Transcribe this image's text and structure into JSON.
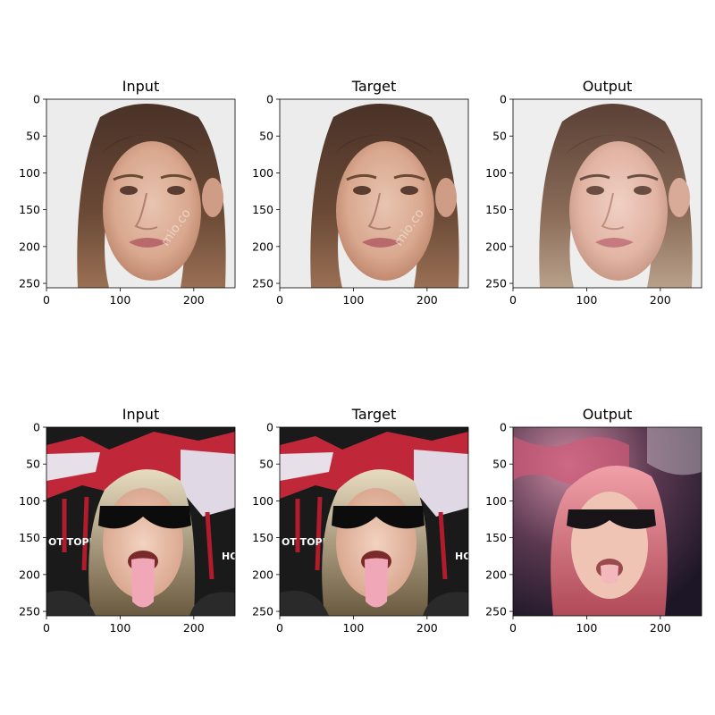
{
  "rows": [
    {
      "panels": [
        {
          "title": "Input",
          "image": "woman-face-photo"
        },
        {
          "title": "Target",
          "image": "woman-face-photo"
        },
        {
          "title": "Output",
          "image": "woman-face-generated"
        }
      ]
    },
    {
      "panels": [
        {
          "title": "Input",
          "image": "person-sunglasses-tongue-photo"
        },
        {
          "title": "Target",
          "image": "person-sunglasses-tongue-photo"
        },
        {
          "title": "Output",
          "image": "person-sunglasses-generated"
        }
      ]
    }
  ],
  "axes": {
    "x_ticks": [
      0,
      100,
      200
    ],
    "y_ticks": [
      0,
      50,
      100,
      150,
      200,
      250
    ],
    "range": [
      0,
      256
    ]
  },
  "colors": {
    "frame": "#000000",
    "background": "#ffffff"
  }
}
